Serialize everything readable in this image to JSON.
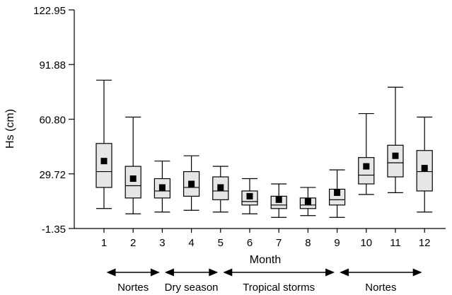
{
  "chart_data": {
    "type": "box",
    "xlabel": "Month",
    "ylabel": "Hs (cm)",
    "categories": [
      "1",
      "2",
      "3",
      "4",
      "5",
      "6",
      "7",
      "8",
      "9",
      "10",
      "11",
      "12"
    ],
    "ylim": [
      -1.35,
      122.95
    ],
    "yticks": [
      "-1.35",
      "29.72",
      "60.80",
      "91.88",
      "122.95"
    ],
    "ytick_values": [
      -1.35,
      29.72,
      60.8,
      91.88,
      122.95
    ],
    "boxes": [
      {
        "month": "1",
        "whisker_low": 10.0,
        "q1": 22.0,
        "median": 31.0,
        "q3": 47.0,
        "whisker_high": 83.0,
        "mean": 37.0
      },
      {
        "month": "2",
        "whisker_low": 7.0,
        "q1": 16.0,
        "median": 23.0,
        "q3": 34.0,
        "whisker_high": 62.0,
        "mean": 27.0
      },
      {
        "month": "3",
        "whisker_low": 8.0,
        "q1": 16.0,
        "median": 20.0,
        "q3": 27.0,
        "whisker_high": 37.0,
        "mean": 22.0
      },
      {
        "month": "4",
        "whisker_low": 9.0,
        "q1": 17.0,
        "median": 22.0,
        "q3": 31.0,
        "whisker_high": 40.0,
        "mean": 24.0
      },
      {
        "month": "5",
        "whisker_low": 8.0,
        "q1": 15.0,
        "median": 20.0,
        "q3": 28.0,
        "whisker_high": 34.0,
        "mean": 22.0
      },
      {
        "month": "6",
        "whisker_low": 7.0,
        "q1": 12.0,
        "median": 14.0,
        "q3": 20.0,
        "whisker_high": 27.0,
        "mean": 17.0
      },
      {
        "month": "7",
        "whisker_low": 5.0,
        "q1": 10.0,
        "median": 12.0,
        "q3": 17.0,
        "whisker_high": 24.0,
        "mean": 15.0
      },
      {
        "month": "8",
        "whisker_low": 6.0,
        "q1": 10.0,
        "median": 12.0,
        "q3": 16.0,
        "whisker_high": 22.0,
        "mean": 14.0
      },
      {
        "month": "9",
        "whisker_low": 5.0,
        "q1": 12.0,
        "median": 15.0,
        "q3": 21.0,
        "whisker_high": 32.0,
        "mean": 19.0
      },
      {
        "month": "10",
        "whisker_low": 18.0,
        "q1": 24.0,
        "median": 29.0,
        "q3": 39.0,
        "whisker_high": 64.0,
        "mean": 34.0
      },
      {
        "month": "11",
        "whisker_low": 19.0,
        "q1": 28.0,
        "median": 36.0,
        "q3": 46.0,
        "whisker_high": 79.0,
        "mean": 40.0
      },
      {
        "month": "12",
        "whisker_low": 8.0,
        "q1": 20.0,
        "median": 31.0,
        "q3": 43.0,
        "whisker_high": 62.0,
        "mean": 33.0
      }
    ],
    "seasons": [
      {
        "label": "Nortes",
        "from_month": "1",
        "to_month": "3"
      },
      {
        "label": "Dry season",
        "from_month": "3",
        "to_month": "5"
      },
      {
        "label": "Tropical storms",
        "from_month": "5",
        "to_month": "9"
      },
      {
        "label": "Nortes",
        "from_month": "9",
        "to_month": "12"
      }
    ],
    "colors": {
      "box_fill": "#e6e6e6",
      "stroke": "#000000",
      "mean_marker": "#000000"
    }
  }
}
